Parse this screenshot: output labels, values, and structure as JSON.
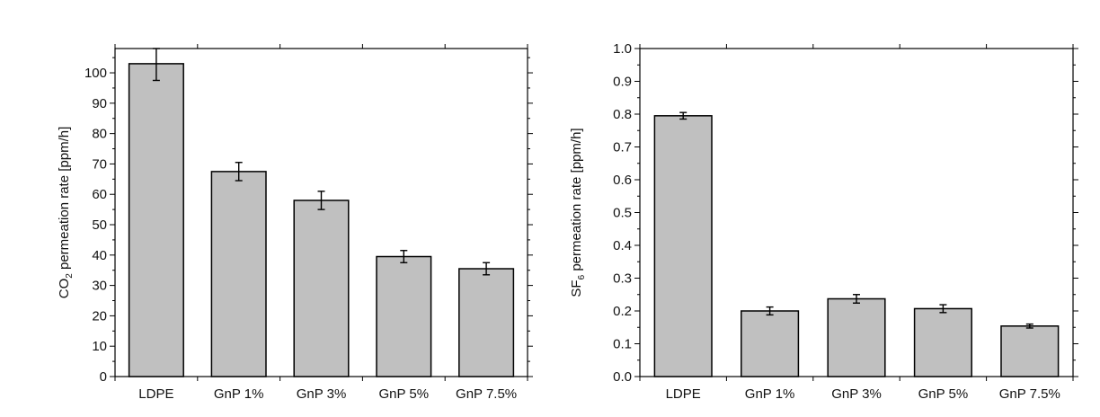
{
  "chart_data": [
    {
      "type": "bar",
      "categories": [
        "LDPE",
        "GnP 1%",
        "GnP 3%",
        "GnP 5%",
        "GnP 7.5%"
      ],
      "values": [
        103,
        67.5,
        58,
        39.5,
        35.5
      ],
      "errors": [
        5.5,
        3,
        3,
        2,
        2
      ],
      "ylabel_main": "CO",
      "ylabel_sub": "2",
      "ylabel_rest": " permeation rate [ppm/h]",
      "ylim": [
        0,
        108
      ],
      "yticks": [
        0,
        10,
        20,
        30,
        40,
        50,
        60,
        70,
        80,
        90,
        100
      ],
      "ytick_labels": [
        "0",
        "10",
        "20",
        "30",
        "40",
        "50",
        "60",
        "70",
        "80",
        "90",
        "100"
      ],
      "bar_color": "#c0c0c0",
      "grid": false
    },
    {
      "type": "bar",
      "categories": [
        "LDPE",
        "GnP 1%",
        "GnP 3%",
        "GnP 5%",
        "GnP 7.5%"
      ],
      "values": [
        0.795,
        0.2,
        0.237,
        0.207,
        0.154
      ],
      "errors": [
        0.01,
        0.012,
        0.013,
        0.012,
        0.006
      ],
      "ylabel_main": "SF",
      "ylabel_sub": "6",
      "ylabel_rest": " permeation rate [ppm/h]",
      "ylim": [
        0,
        1.0
      ],
      "yticks": [
        0,
        0.1,
        0.2,
        0.3,
        0.4,
        0.5,
        0.6,
        0.7,
        0.8,
        0.9,
        1.0
      ],
      "ytick_labels": [
        "0.0",
        "0.1",
        "0.2",
        "0.3",
        "0.4",
        "0.5",
        "0.6",
        "0.7",
        "0.8",
        "0.9",
        "1.0"
      ],
      "bar_color": "#c0c0c0",
      "grid": false
    }
  ]
}
